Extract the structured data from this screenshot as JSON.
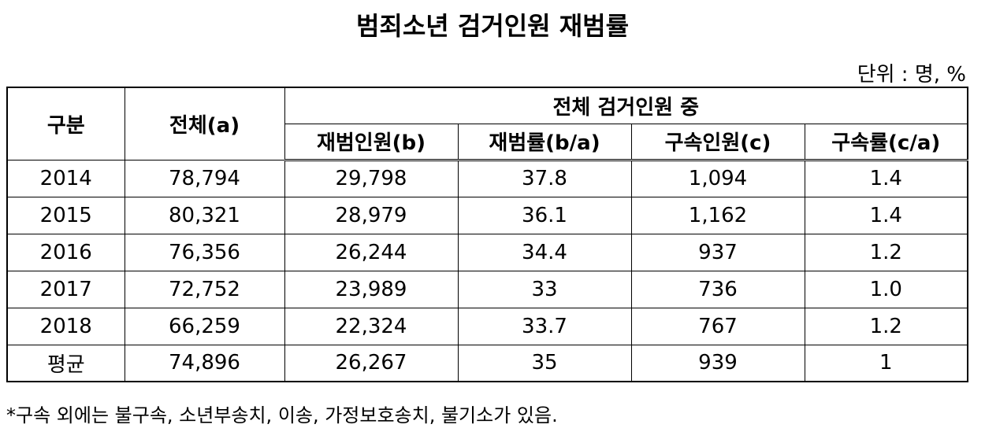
{
  "title": "범죄소년 검거인원 재범률",
  "unit": "단위 : 명, %",
  "table": {
    "header": {
      "group": "구분",
      "total": "전체(a)",
      "span": "전체 검거인원 중",
      "sub": [
        "재범인원(b)",
        "재범률(b/a)",
        "구속인원(c)",
        "구속률(c/a)"
      ]
    },
    "rows": [
      [
        "2014",
        "78,794",
        "29,798",
        "37.8",
        "1,094",
        "1.4"
      ],
      [
        "2015",
        "80,321",
        "28,979",
        "36.1",
        "1,162",
        "1.4"
      ],
      [
        "2016",
        "76,356",
        "26,244",
        "34.4",
        "937",
        "1.2"
      ],
      [
        "2017",
        "72,752",
        "23,989",
        "33",
        "736",
        "1.0"
      ],
      [
        "2018",
        "66,259",
        "22,324",
        "33.7",
        "767",
        "1.2"
      ],
      [
        "평균",
        "74,896",
        "26,267",
        "35",
        "939",
        "1"
      ]
    ]
  },
  "footnote": "*구속 외에는 불구속, 소년부송치, 이송, 가정보호송치, 불기소가 있음."
}
